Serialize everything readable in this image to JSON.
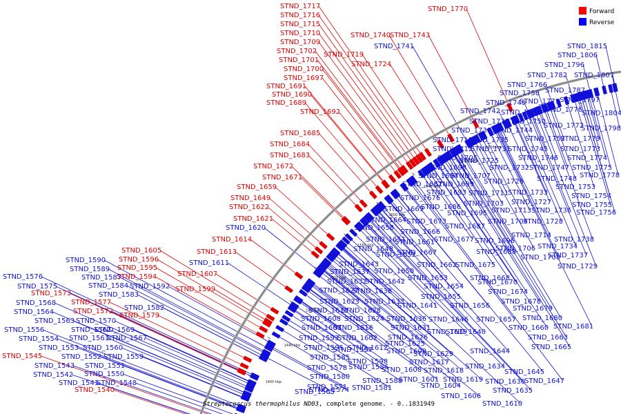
{
  "caption_species": "Streptococcus thermophilus ND03",
  "caption_rest": ", complete genome. - 0..1831949",
  "legend": [
    {
      "label": "Forward",
      "color": "#ff0000"
    },
    {
      "label": "Reverse",
      "color": "#0000ff"
    }
  ],
  "colors": {
    "forward": "#e00000",
    "reverse": "#1010d8",
    "backbone": "#808080"
  },
  "ticks": [
    "1400 kbp",
    "1440 kbp",
    "1480 kbp",
    "1520 kbp",
    "1560 kbp",
    "1600 kbp",
    "1640 kbp",
    "1680 kbp",
    "1700 kbp"
  ],
  "forward_labels": [
    "STND_1717",
    "STND_1716",
    "STND_1715",
    "STND_1710",
    "STND_1709",
    "STND_1702",
    "STND_1701",
    "STND_1700",
    "STND_1697",
    "STND_1691",
    "STND_1690",
    "STND_1689",
    "STND_1692",
    "STND_1685",
    "STND_1684",
    "STND_1683",
    "STND_1672",
    "STND_1671",
    "STND_1659",
    "STND_1649",
    "STND_1622",
    "STND_1621",
    "STND_1614",
    "STND_1613",
    "STND_1605",
    "STND_1596",
    "STND_1595",
    "STND_1594",
    "STND_1607",
    "STND_1599",
    "STND_1573",
    "STND_1577",
    "STND_1572",
    "STND_1579",
    "STND_1545",
    "STND_1540",
    "STND_1770",
    "STND_1740",
    "STND_1743",
    "STND_1719",
    "STND_1724"
  ],
  "reverse_labels": [
    "STND_1741",
    "STND_1620",
    "STND_1611",
    "STND_1590",
    "STND_1589",
    "STND_1587",
    "STND_1584",
    "STND_1592",
    "STND_1583",
    "STND_1576",
    "STND_1575",
    "STND_1568",
    "STND_1564",
    "STND_1582",
    "STND_1563",
    "STND_1570",
    "STND_1556",
    "STND_1562",
    "STND_1569",
    "STND_1554",
    "STND_1561",
    "STND_1567",
    "STND_1553",
    "STND_1560",
    "STND_1552",
    "STND_1559",
    "STND_1551",
    "STND_1543",
    "STND_1550",
    "STND_1542",
    "STND_1548",
    "STND_1541",
    "STND_1815",
    "STND_1806",
    "STND_1796",
    "STND_1807",
    "STND_1782",
    "STND_1766",
    "STND_1787",
    "STND_1758",
    "STND_1797",
    "STND_1771",
    "STND_1749",
    "STND_1776",
    "STND_1804",
    "STND_1742",
    "STND_1751",
    "STND_1739",
    "STND_1750",
    "STND_1772",
    "STND_1798",
    "STND_1730",
    "STND_1744",
    "STND_1752",
    "STND_1779",
    "STND_1718",
    "STND_1735",
    "STND_1712",
    "STND_1731",
    "STND_1745",
    "STND_1773",
    "STND_1705",
    "STND_1746",
    "STND_1774",
    "STND_1725",
    "STND_1698",
    "STND_1732",
    "STND_1747",
    "STND_1775",
    "STND_1694",
    "STND_1707",
    "STND_1778",
    "STND_1682",
    "STND_1699",
    "STND_1726",
    "STND_1748",
    "STND_1733",
    "STND_1693",
    "STND_1711",
    "STND_1753",
    "STND_1676",
    "STND_1727",
    "STND_1703",
    "STND_1754",
    "STND_1686",
    "STND_1713",
    "STND_1736",
    "STND_1669",
    "STND_1695",
    "STND_1755",
    "STND_1664",
    "STND_1704",
    "STND_1728",
    "STND_1756",
    "STND_1673",
    "STND_1687",
    "STND_1658",
    "STND_1666",
    "STND_1651",
    "STND_1714",
    "STND_1738",
    "STND_1661",
    "STND_1677",
    "STND_1696",
    "STND_1648",
    "STND_1667",
    "STND_1706",
    "STND_1734",
    "STND_1652",
    "STND_1688",
    "STND_1737",
    "STND_1708",
    "STND_1643",
    "STND_1662",
    "STND_1675",
    "STND_1729",
    "STND_1650",
    "STND_1637",
    "STND_1653",
    "STND_1668",
    "STND_1632",
    "STND_1642",
    "STND_1654",
    "STND_1670",
    "STND_1627",
    "STND_1638",
    "STND_1674",
    "STND_1655",
    "STND_1623",
    "STND_1633",
    "STND_1678",
    "STND_1641",
    "STND_1656",
    "STND_1615",
    "STND_1628",
    "STND_1679",
    "STND_1608",
    "STND_1624",
    "STND_1636",
    "STND_1646",
    "STND_1657",
    "STND_1680",
    "STND_1603",
    "STND_1616",
    "STND_1631",
    "STND_1660",
    "STND_1681",
    "STND_1626",
    "STND_1639",
    "STND_1593",
    "STND_1602",
    "STND_1663",
    "STND_1591",
    "STND_1612",
    "STND_1625",
    "STND_1640",
    "STND_1597",
    "STND_1609",
    "STND_1665",
    "STND_1585",
    "STND_1598",
    "STND_1629",
    "STND_1644",
    "STND_1578",
    "STND_1586",
    "STND_1617",
    "STND_1600",
    "STND_1618",
    "STND_1634",
    "STND_1580",
    "STND_1601",
    "STND_1619",
    "STND_1645",
    "STND_1571",
    "STND_1588",
    "STND_1630",
    "STND_1647",
    "STND_1574",
    "STND_1581",
    "STND_1604",
    "STND_1565",
    "STND_1635",
    "STND_1606",
    "STND_1610"
  ]
}
